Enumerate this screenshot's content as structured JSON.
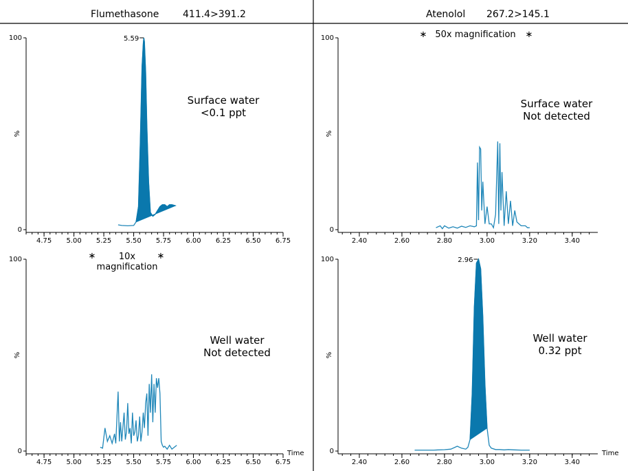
{
  "headers": {
    "left": {
      "compound": "Flumethasone",
      "transition": "411.4>391.2"
    },
    "right": {
      "compound": "Atenolol",
      "transition": "267.2>145.1"
    }
  },
  "colors": {
    "trace": "#1e86b8",
    "fill": "#0a78ad",
    "axis": "#000000"
  },
  "chart_data": [
    {
      "type": "line",
      "panel": "top-left",
      "ylabel": "%",
      "y_ticks": [
        "0",
        "100"
      ],
      "ylim": [
        0,
        100
      ],
      "xlim": [
        4.6,
        6.75
      ],
      "x_ticks": [
        "4.75",
        "5.00",
        "5.25",
        "5.50",
        "5.75",
        "6.00",
        "6.25",
        "6.50",
        "6.75"
      ],
      "xlabel": "",
      "annotation": [
        "Surface water",
        "<0.1 ppt"
      ],
      "peak_label": {
        "text": "5.59",
        "x": 5.59,
        "y": 100
      },
      "magnification": "",
      "series": [
        {
          "filled_peak": true,
          "x": [
            5.37,
            5.4,
            5.45,
            5.5,
            5.52,
            5.54,
            5.555,
            5.57,
            5.58,
            5.585,
            5.59,
            5.6,
            5.61,
            5.625,
            5.64,
            5.66,
            5.68,
            5.7,
            5.72,
            5.74,
            5.76,
            5.78,
            5.8,
            5.82,
            5.85
          ],
          "y": [
            2.5,
            2.2,
            2,
            2.2,
            4,
            12,
            45,
            85,
            97,
            100,
            98,
            82,
            55,
            25,
            9,
            7,
            8,
            10,
            12,
            13,
            13,
            12,
            13,
            13,
            12.5
          ]
        }
      ]
    },
    {
      "type": "line",
      "panel": "top-right",
      "ylabel": "%",
      "y_ticks": [
        "0",
        "100"
      ],
      "ylim": [
        0,
        100
      ],
      "xlim": [
        2.3,
        3.52
      ],
      "x_ticks": [
        "2.40",
        "2.60",
        "2.80",
        "3.00",
        "3.20",
        "3.40"
      ],
      "xlabel": "",
      "annotation": [
        "Surface water",
        "Not detected"
      ],
      "peak_label": null,
      "magnification": "50x magnification",
      "series": [
        {
          "filled_peak": false,
          "x": [
            2.76,
            2.78,
            2.79,
            2.8,
            2.82,
            2.84,
            2.86,
            2.88,
            2.9,
            2.92,
            2.94,
            2.95,
            2.955,
            2.96,
            2.965,
            2.97,
            2.975,
            2.98,
            2.99,
            3.0,
            3.01,
            3.02,
            3.03,
            3.04,
            3.05,
            3.055,
            3.06,
            3.065,
            3.07,
            3.08,
            3.09,
            3.1,
            3.11,
            3.12,
            3.13,
            3.14,
            3.15,
            3.16,
            3.17,
            3.18,
            3.19,
            3.2
          ],
          "y": [
            1,
            2,
            0.5,
            2,
            0.8,
            1.5,
            0.8,
            1.8,
            1.2,
            2,
            1.5,
            2,
            35,
            5,
            43,
            42,
            10,
            25,
            3,
            12,
            3,
            3,
            1,
            8,
            46,
            3,
            45,
            10,
            30,
            2,
            20,
            3,
            15,
            2,
            10,
            4,
            3,
            2,
            2,
            2,
            1,
            1
          ]
        }
      ]
    },
    {
      "type": "line",
      "panel": "bottom-left",
      "ylabel": "%",
      "y_ticks": [
        "0",
        "100"
      ],
      "ylim": [
        0,
        100
      ],
      "xlim": [
        4.6,
        6.75
      ],
      "x_ticks": [
        "4.75",
        "5.00",
        "5.25",
        "5.50",
        "5.75",
        "6.00",
        "6.25",
        "6.50",
        "6.75"
      ],
      "xlabel": "Time",
      "annotation": [
        "Well water",
        "Not detected"
      ],
      "peak_label": null,
      "magnification": "10x magnification",
      "series": [
        {
          "filled_peak": false,
          "x": [
            5.22,
            5.24,
            5.26,
            5.28,
            5.3,
            5.32,
            5.34,
            5.35,
            5.37,
            5.38,
            5.39,
            5.4,
            5.42,
            5.43,
            5.44,
            5.45,
            5.46,
            5.47,
            5.48,
            5.49,
            5.5,
            5.51,
            5.52,
            5.53,
            5.54,
            5.55,
            5.56,
            5.57,
            5.58,
            5.59,
            5.6,
            5.61,
            5.62,
            5.63,
            5.64,
            5.65,
            5.66,
            5.67,
            5.68,
            5.69,
            5.7,
            5.71,
            5.72,
            5.73,
            5.74,
            5.75,
            5.76,
            5.78,
            5.8,
            5.82,
            5.84,
            5.86
          ],
          "y": [
            2,
            1.5,
            12,
            5,
            8,
            4,
            9,
            4,
            31,
            5,
            15,
            5,
            20,
            6,
            10,
            25,
            9,
            12,
            4,
            20,
            8,
            10,
            16,
            5,
            8,
            18,
            5,
            10,
            20,
            12,
            25,
            30,
            8,
            35,
            20,
            40,
            15,
            35,
            20,
            38,
            33,
            38,
            30,
            5,
            3,
            2,
            2.5,
            1,
            3,
            1,
            2,
            3
          ]
        }
      ]
    },
    {
      "type": "line",
      "panel": "bottom-right",
      "ylabel": "%",
      "y_ticks": [
        "0",
        "100"
      ],
      "ylim": [
        0,
        100
      ],
      "xlim": [
        2.3,
        3.52
      ],
      "x_ticks": [
        "2.40",
        "2.60",
        "2.80",
        "3.00",
        "3.20",
        "3.40"
      ],
      "xlabel": "Time",
      "annotation": [
        "Well water",
        "0.32 ppt"
      ],
      "peak_label": {
        "text": "2.96",
        "x": 2.96,
        "y": 100
      },
      "magnification": "",
      "series": [
        {
          "filled_peak": true,
          "x": [
            2.66,
            2.7,
            2.75,
            2.8,
            2.83,
            2.86,
            2.88,
            2.9,
            2.91,
            2.92,
            2.93,
            2.94,
            2.95,
            2.96,
            2.97,
            2.98,
            2.99,
            3.0,
            3.01,
            3.02,
            3.04,
            3.06,
            3.08,
            3.1,
            3.13,
            3.16,
            3.2
          ],
          "y": [
            0.5,
            0.5,
            0.5,
            0.7,
            1,
            2.5,
            1.5,
            1,
            2,
            6,
            30,
            75,
            98,
            100,
            95,
            70,
            35,
            12,
            3,
            1.5,
            0.8,
            0.8,
            0.6,
            0.8,
            0.6,
            0.5,
            0.5
          ]
        }
      ]
    }
  ]
}
